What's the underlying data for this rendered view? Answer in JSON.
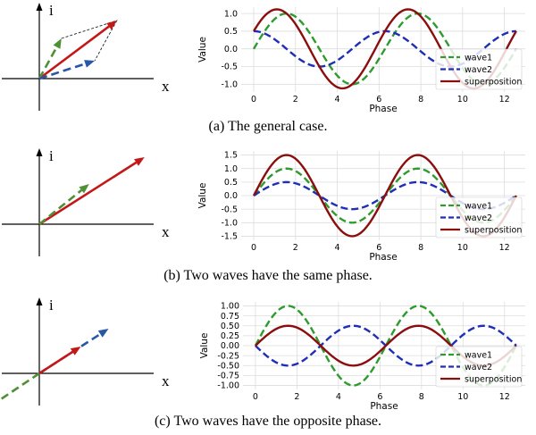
{
  "colors": {
    "wave1": "#2e9b2e",
    "wave2": "#1f2fb5",
    "superposition": "#8b0e0e",
    "vec_wave1": "#4f8f35",
    "vec_wave2": "#2a56a8",
    "vec_sum": "#c41818"
  },
  "labels": {
    "x": "x",
    "i": "i"
  },
  "panels": [
    {
      "caption": "(a) The general case.",
      "phasor": {
        "wave1": [
          0.4,
          0.9
        ],
        "wave2": [
          1.0,
          0.4
        ],
        "sum": [
          1.4,
          1.3
        ]
      },
      "chart_data": {
        "type": "line",
        "xlabel": "Phase",
        "ylabel": "Value",
        "xlim": [
          -0.6,
          13.0
        ],
        "ylim": [
          -1.22,
          1.18
        ],
        "xticks": [
          0,
          2,
          4,
          6,
          8,
          10,
          12
        ],
        "yticks": [
          -1.0,
          -0.5,
          0.0,
          0.5,
          1.0
        ],
        "ytick_labels": [
          "-1.0",
          "-0.5",
          "0.0",
          "0.5",
          "1.0"
        ],
        "legend": [
          "wave1",
          "wave2",
          "superposition"
        ],
        "legend_loc": "bottom-right",
        "grid": true,
        "series": [
          {
            "name": "wave1",
            "amplitude": 1.0,
            "phase": 0.0
          },
          {
            "name": "wave2",
            "amplitude": 0.5,
            "phase": 1.5708
          },
          {
            "name": "superposition",
            "amplitude": 1.118,
            "phase": 0.4636
          }
        ]
      }
    },
    {
      "caption": "(b) Two waves have the same phase.",
      "phasor": {
        "wave1": [
          0.9,
          0.9
        ],
        "wave2": [
          0.0,
          0.0
        ],
        "sum": [
          1.9,
          1.5
        ]
      },
      "chart_data": {
        "type": "line",
        "xlabel": "Phase",
        "ylabel": "Value",
        "xlim": [
          -0.6,
          13.0
        ],
        "ylim": [
          -1.65,
          1.65
        ],
        "xticks": [
          0,
          2,
          4,
          6,
          8,
          10,
          12
        ],
        "yticks": [
          -1.5,
          -1.0,
          -0.5,
          0.0,
          0.5,
          1.0,
          1.5
        ],
        "ytick_labels": [
          "-1.5",
          "-1.0",
          "-0.5",
          "0.0",
          "0.5",
          "1.0",
          "1.5"
        ],
        "legend": [
          "wave1",
          "wave2",
          "superposition"
        ],
        "legend_loc": "bottom-right",
        "grid": true,
        "series": [
          {
            "name": "wave1",
            "amplitude": 1.0,
            "phase": 0.0
          },
          {
            "name": "wave2",
            "amplitude": 0.5,
            "phase": 0.0
          },
          {
            "name": "superposition",
            "amplitude": 1.5,
            "phase": 0.0
          }
        ]
      }
    },
    {
      "caption": "(c) Two waves have the opposite phase.",
      "phasor": {
        "wave1": [
          -0.9,
          -0.75
        ],
        "wave2": [
          1.25,
          1.0
        ],
        "sum": [
          0.75,
          0.6
        ]
      },
      "chart_data": {
        "type": "line",
        "xlabel": "Phase",
        "ylabel": "Value",
        "xlim": [
          -0.6,
          13.0
        ],
        "ylim": [
          -1.1,
          1.1
        ],
        "xticks": [
          0,
          2,
          4,
          6,
          8,
          10,
          12
        ],
        "yticks": [
          -1.0,
          -0.75,
          -0.5,
          -0.25,
          0.0,
          0.25,
          0.5,
          0.75,
          1.0
        ],
        "ytick_labels": [
          "-1.00",
          "-0.75",
          "-0.50",
          "-0.25",
          "0.00",
          "0.25",
          "0.50",
          "0.75",
          "1.00"
        ],
        "legend": [
          "wave1",
          "wave2",
          "superposition"
        ],
        "legend_loc": "bottom-right",
        "grid": true,
        "series": [
          {
            "name": "wave1",
            "amplitude": 1.0,
            "phase": 0.0
          },
          {
            "name": "wave2",
            "amplitude": -0.5,
            "phase": 0.0
          },
          {
            "name": "superposition",
            "amplitude": 0.5,
            "phase": 0.0
          }
        ]
      }
    }
  ]
}
